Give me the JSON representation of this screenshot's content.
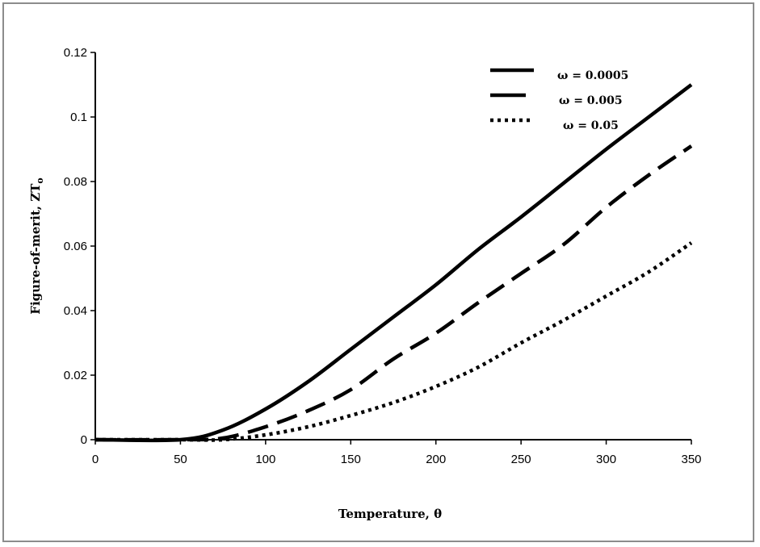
{
  "chart_data": {
    "type": "line",
    "title": "",
    "xlabel": "Temperature, θ",
    "ylabel_main": "Figure-of-merit, ZT",
    "ylabel_sub": "o",
    "xlim": [
      0,
      350
    ],
    "ylim": [
      0,
      0.12
    ],
    "x_ticks": [
      0,
      50,
      100,
      150,
      200,
      250,
      300,
      350
    ],
    "y_ticks": [
      0,
      0.02,
      0.04,
      0.06,
      0.08,
      0.1,
      0.12
    ],
    "x_tick_labels": [
      "0",
      "50",
      "100",
      "150",
      "200",
      "250",
      "300",
      "350"
    ],
    "y_tick_labels": [
      "0",
      "0.02",
      "0.04",
      "0.06",
      "0.08",
      "0.1",
      "0.12"
    ],
    "grid": false,
    "legend_position": "top-right",
    "series": [
      {
        "name": "ω = 0.0005",
        "style": "solid",
        "x": [
          0,
          50,
          75,
          100,
          125,
          150,
          175,
          200,
          225,
          250,
          275,
          300,
          325,
          350
        ],
        "y": [
          0,
          0,
          0.003,
          0.0095,
          0.018,
          0.028,
          0.038,
          0.048,
          0.059,
          0.069,
          0.0795,
          0.09,
          0.1,
          0.11
        ]
      },
      {
        "name": "ω = 0.005",
        "style": "dashed",
        "x": [
          0,
          50,
          75,
          100,
          125,
          150,
          175,
          200,
          225,
          250,
          275,
          300,
          325,
          350
        ],
        "y": [
          0,
          0,
          0.0005,
          0.004,
          0.009,
          0.0155,
          0.025,
          0.033,
          0.0425,
          0.0515,
          0.0605,
          0.072,
          0.082,
          0.091
        ]
      },
      {
        "name": "ω = 0.05",
        "style": "dotted",
        "x": [
          0,
          50,
          75,
          100,
          125,
          150,
          175,
          200,
          225,
          250,
          275,
          300,
          325,
          350
        ],
        "y": [
          0,
          0,
          0,
          0.0015,
          0.004,
          0.0075,
          0.0115,
          0.0165,
          0.0225,
          0.03,
          0.037,
          0.0445,
          0.052,
          0.061
        ]
      }
    ],
    "colors": {
      "line": "#000000",
      "frame_border": "#8c8c8c"
    }
  }
}
